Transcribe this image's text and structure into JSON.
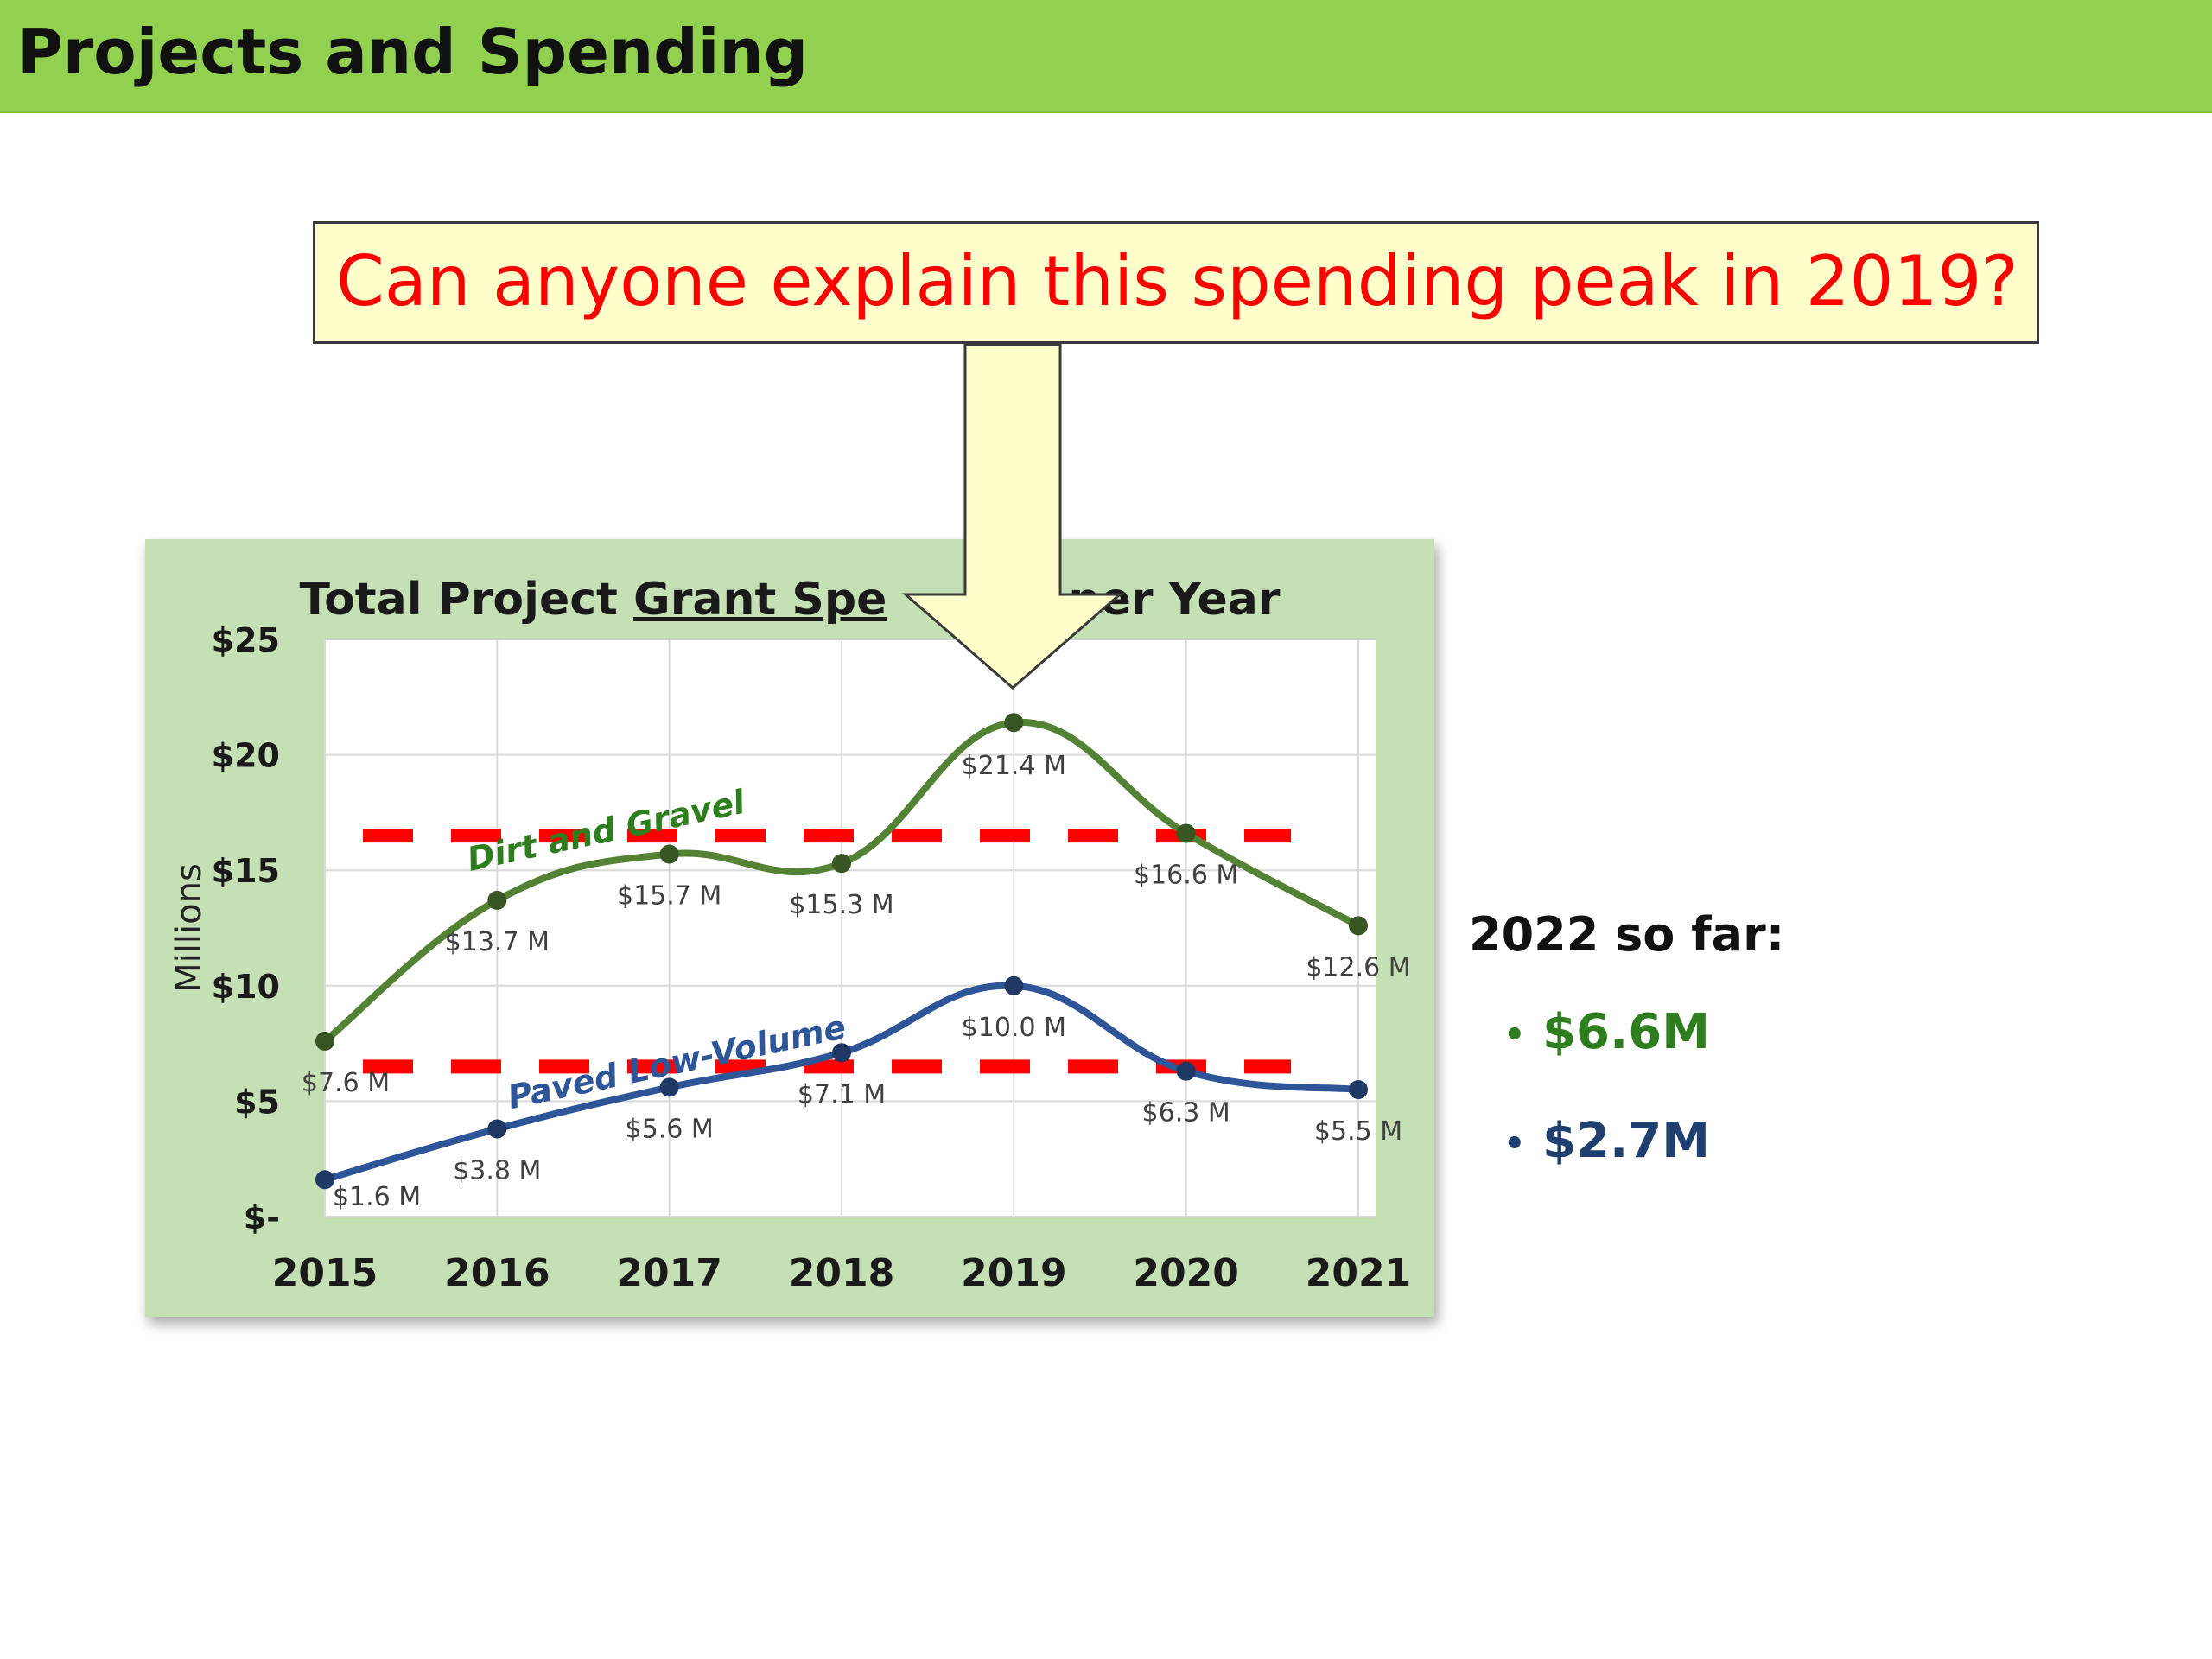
{
  "header": {
    "title": "Projects and Spending"
  },
  "callout": {
    "text": "Can anyone explain this spending peak in 2019?"
  },
  "chart_data": {
    "type": "line",
    "title_parts": [
      "Total Project ",
      "Grant Spe",
      "per Year"
    ],
    "ylabel": "Millions",
    "ylim": [
      0,
      25
    ],
    "y_ticks": [
      "$-",
      "$5",
      "$10",
      "$15",
      "$20",
      "$25"
    ],
    "categories": [
      "2015",
      "2016",
      "2017",
      "2018",
      "2019",
      "2020",
      "2021"
    ],
    "series": [
      {
        "name": "Dirt and Gravel",
        "color": "#548235",
        "values": [
          7.6,
          13.7,
          15.7,
          15.3,
          21.4,
          16.6,
          12.6
        ],
        "labels": [
          "$7.6 M",
          "$13.7 M",
          "$15.7 M",
          "$15.3 M",
          "$21.4 M",
          "$16.6 M",
          "$12.6 M"
        ],
        "average_line": 16.5
      },
      {
        "name": "Paved Low-Volume",
        "color": "#2e5597",
        "values": [
          1.6,
          3.8,
          5.6,
          7.1,
          10.0,
          6.3,
          5.5
        ],
        "labels": [
          "$1.6 M",
          "$3.8 M",
          "$5.6 M",
          "$7.1 M",
          "$10.0 M",
          "$6.3 M",
          "$5.5 M"
        ],
        "average_line": 6.5
      }
    ],
    "reference_line_color": "#ff0000",
    "grid": true,
    "highlight_category": "2019"
  },
  "side": {
    "title": "2022 so far:",
    "items": [
      {
        "text": "$6.6M",
        "color": "#2e7d1e"
      },
      {
        "text": "$2.7M",
        "color": "#1f3f6e"
      }
    ]
  },
  "colors": {
    "header_bg": "#92d050",
    "callout_bg": "#ffffcc",
    "chart_bg": "#c5e0b4",
    "arrow_fill": "#ffffcc"
  }
}
